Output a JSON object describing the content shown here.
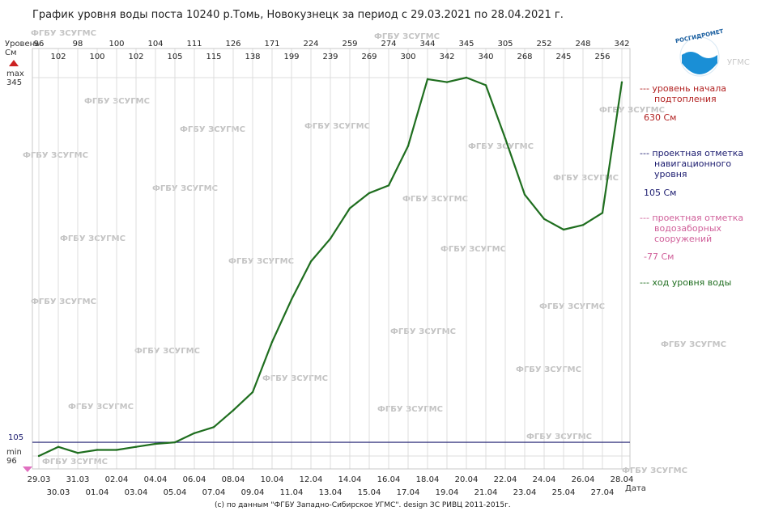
{
  "title": "График уровня воды поста 10240 р.Томь, Новокузнецк за период с 29.03.2021 по 28.04.2021 г.",
  "footer": "(c) по данным \"ФГБУ Западно-Сибирское УГМС\". design ЗС РИВЦ 2011-2015г.",
  "y_axis_label_line1": "Уровень",
  "y_axis_label_line2": "См",
  "x_axis_label": "Дата",
  "max_label": "max",
  "max_value_label": "345",
  "min_label": "min",
  "min_value_label": "96",
  "nav_level_axis_label": "105",
  "watermark": "ФГБУ ЗСУГМС",
  "logo_text": "РОСГИДРОМЕТ",
  "logo_suffix": "УГМС",
  "legend": {
    "flood": {
      "label_line1": "--- уровень начала",
      "label_line2": "подтопления",
      "value": "630 См",
      "color": "#b22222"
    },
    "nav": {
      "label_line1": "--- проектная отметка",
      "label_line2": "навигационного",
      "label_line3": "уровня",
      "value": "105 См",
      "color": "#1a1a6e"
    },
    "intake": {
      "label_line1": "--- проектная отметка",
      "label_line2": "водозаборных",
      "label_line3": "сооружений",
      "value": "-77 См",
      "color": "#d0609a"
    },
    "series": {
      "label": "--- ход уровня воды",
      "color": "#1f6e1f"
    }
  },
  "chart_data": {
    "type": "line",
    "title": "График уровня воды поста 10240 р.Томь, Новокузнецк за период с 29.03.2021 по 28.04.2021 г.",
    "xlabel": "Дата",
    "ylabel": "Уровень См",
    "ylim": [
      96,
      345
    ],
    "categories": [
      "29.03",
      "30.03",
      "31.03",
      "01.04",
      "02.04",
      "03.04",
      "04.04",
      "05.04",
      "06.04",
      "07.04",
      "08.04",
      "09.04",
      "10.04",
      "11.04",
      "12.04",
      "13.04",
      "14.04",
      "15.04",
      "16.04",
      "17.04",
      "18.04",
      "19.04",
      "20.04",
      "21.04",
      "22.04",
      "23.04",
      "24.04",
      "25.04",
      "26.04",
      "27.04",
      "28.04"
    ],
    "series": [
      {
        "name": "ход уровня воды",
        "values": [
          96,
          102,
          98,
          100,
          100,
          102,
          104,
          105,
          111,
          115,
          126,
          138,
          171,
          199,
          224,
          239,
          259,
          269,
          274,
          300,
          344,
          342,
          345,
          340,
          305,
          268,
          252,
          245,
          248,
          256,
          342
        ]
      }
    ],
    "reference_lines": [
      {
        "name": "проектная отметка навигационного уровня",
        "value": 105
      }
    ],
    "grid": true,
    "legend_position": "right"
  }
}
